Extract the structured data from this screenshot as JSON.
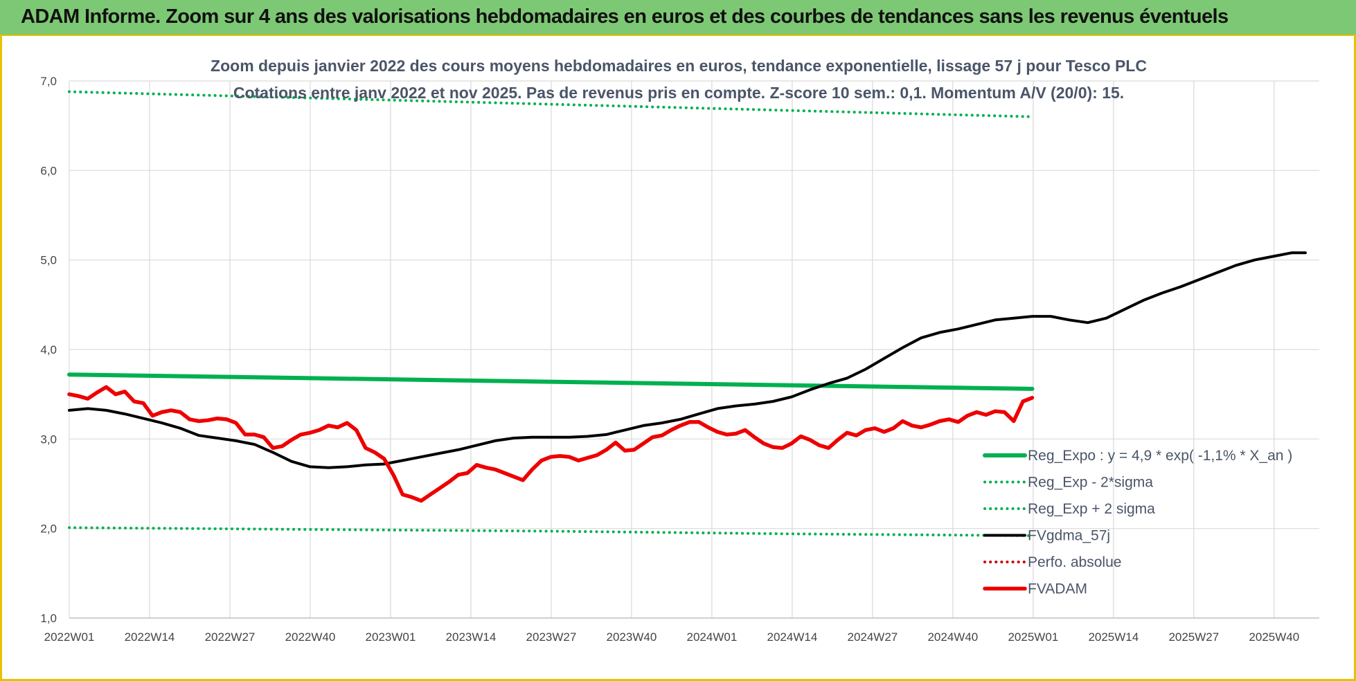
{
  "banner": {
    "title": "ADAM Informe. Zoom sur 4 ans des valorisations hebdomadaires en euros et des courbes de tendances sans les revenus éventuels"
  },
  "colors": {
    "banner_bg": "#7dc874",
    "border": "#e6c200",
    "trend": "#00b050",
    "fvgdma": "#000000",
    "fvadam": "#ee0000",
    "perfo": "#cc0000"
  },
  "chart_data": {
    "type": "line",
    "title_line1": "Zoom depuis janvier 2022 des cours moyens hebdomadaires en euros, tendance exponentielle, lissage 57 j pour Tesco PLC",
    "title_line2": "Cotations entre janv 2022 et nov 2025. Pas de revenus pris en compte. Z-score 10 sem.: 0,1. Momentum A/V (20/0): 15.",
    "ylim": [
      1.0,
      7.0
    ],
    "yticks": [
      "1,0",
      "2,0",
      "3,0",
      "4,0",
      "5,0",
      "6,0",
      "7,0"
    ],
    "xticks": [
      "2022W01",
      "2022W14",
      "2022W27",
      "2022W40",
      "2023W01",
      "2023W14",
      "2023W27",
      "2023W40",
      "2024W01",
      "2024W14",
      "2024W27",
      "2024W40",
      "2025W01",
      "2025W14",
      "2025W27",
      "2025W40"
    ],
    "grid": true,
    "legend_position": "bottom-right",
    "series": [
      {
        "name": "Reg_Expo : y = 4,9 * exp( -1,1% *  X_an )",
        "style": "solid-thick",
        "color": "#00b050",
        "points": [
          [
            0,
            3.72
          ],
          [
            52,
            3.68
          ],
          [
            104,
            3.64
          ],
          [
            156,
            3.6
          ],
          [
            208,
            3.56
          ]
        ]
      },
      {
        "name": "Reg_Exp - 2*sigma",
        "style": "dotted",
        "color": "#00b050",
        "points": [
          [
            0,
            2.01
          ],
          [
            52,
            1.99
          ],
          [
            104,
            1.97
          ],
          [
            156,
            1.94
          ],
          [
            208,
            1.92
          ]
        ]
      },
      {
        "name": "Reg_Exp + 2 sigma",
        "style": "dotted",
        "color": "#00b050",
        "points": [
          [
            0,
            6.88
          ],
          [
            52,
            6.81
          ],
          [
            104,
            6.74
          ],
          [
            156,
            6.67
          ],
          [
            208,
            6.6
          ]
        ]
      },
      {
        "name": "FVgdma_57j",
        "style": "solid",
        "color": "#000000",
        "points": [
          [
            0,
            3.32
          ],
          [
            4,
            3.34
          ],
          [
            8,
            3.32
          ],
          [
            12,
            3.28
          ],
          [
            16,
            3.23
          ],
          [
            20,
            3.18
          ],
          [
            24,
            3.12
          ],
          [
            28,
            3.04
          ],
          [
            32,
            3.01
          ],
          [
            36,
            2.98
          ],
          [
            40,
            2.94
          ],
          [
            44,
            2.85
          ],
          [
            48,
            2.75
          ],
          [
            52,
            2.69
          ],
          [
            56,
            2.68
          ],
          [
            60,
            2.69
          ],
          [
            64,
            2.71
          ],
          [
            68,
            2.72
          ],
          [
            72,
            2.76
          ],
          [
            76,
            2.8
          ],
          [
            80,
            2.84
          ],
          [
            84,
            2.88
          ],
          [
            88,
            2.93
          ],
          [
            92,
            2.98
          ],
          [
            96,
            3.01
          ],
          [
            100,
            3.02
          ],
          [
            104,
            3.02
          ],
          [
            108,
            3.02
          ],
          [
            112,
            3.03
          ],
          [
            116,
            3.05
          ],
          [
            120,
            3.1
          ],
          [
            124,
            3.15
          ],
          [
            128,
            3.18
          ],
          [
            132,
            3.22
          ],
          [
            136,
            3.28
          ],
          [
            140,
            3.34
          ],
          [
            144,
            3.37
          ],
          [
            148,
            3.39
          ],
          [
            152,
            3.42
          ],
          [
            156,
            3.47
          ],
          [
            160,
            3.55
          ],
          [
            164,
            3.62
          ],
          [
            168,
            3.68
          ],
          [
            172,
            3.78
          ],
          [
            176,
            3.9
          ],
          [
            180,
            4.02
          ],
          [
            184,
            4.13
          ],
          [
            188,
            4.19
          ],
          [
            192,
            4.23
          ],
          [
            196,
            4.28
          ],
          [
            200,
            4.33
          ],
          [
            204,
            4.35
          ],
          [
            208,
            4.37
          ],
          [
            212,
            4.37
          ],
          [
            216,
            4.33
          ],
          [
            220,
            4.3
          ],
          [
            224,
            4.35
          ],
          [
            228,
            4.45
          ],
          [
            232,
            4.55
          ],
          [
            236,
            4.63
          ],
          [
            240,
            4.7
          ],
          [
            244,
            4.78
          ],
          [
            248,
            4.86
          ],
          [
            252,
            4.94
          ],
          [
            256,
            5.0
          ],
          [
            260,
            5.04
          ],
          [
            264,
            5.08
          ],
          [
            267,
            5.08
          ]
        ]
      },
      {
        "name": "Perfo. absolue",
        "style": "dotted",
        "color": "#cc0000",
        "points": []
      },
      {
        "name": "FVADAM",
        "style": "solid-thick",
        "color": "#ee0000",
        "points": [
          [
            0,
            3.5
          ],
          [
            2,
            3.48
          ],
          [
            4,
            3.45
          ],
          [
            6,
            3.52
          ],
          [
            8,
            3.58
          ],
          [
            10,
            3.5
          ],
          [
            12,
            3.53
          ],
          [
            14,
            3.42
          ],
          [
            16,
            3.4
          ],
          [
            18,
            3.26
          ],
          [
            20,
            3.3
          ],
          [
            22,
            3.32
          ],
          [
            24,
            3.3
          ],
          [
            26,
            3.22
          ],
          [
            28,
            3.2
          ],
          [
            30,
            3.21
          ],
          [
            32,
            3.23
          ],
          [
            34,
            3.22
          ],
          [
            36,
            3.18
          ],
          [
            38,
            3.05
          ],
          [
            40,
            3.05
          ],
          [
            42,
            3.02
          ],
          [
            44,
            2.9
          ],
          [
            46,
            2.92
          ],
          [
            48,
            2.99
          ],
          [
            50,
            3.05
          ],
          [
            52,
            3.07
          ],
          [
            54,
            3.1
          ],
          [
            56,
            3.15
          ],
          [
            58,
            3.13
          ],
          [
            60,
            3.18
          ],
          [
            62,
            3.1
          ],
          [
            64,
            2.9
          ],
          [
            66,
            2.85
          ],
          [
            68,
            2.78
          ],
          [
            70,
            2.6
          ],
          [
            72,
            2.38
          ],
          [
            74,
            2.35
          ],
          [
            76,
            2.31
          ],
          [
            78,
            2.38
          ],
          [
            80,
            2.45
          ],
          [
            82,
            2.52
          ],
          [
            84,
            2.6
          ],
          [
            86,
            2.62
          ],
          [
            88,
            2.71
          ],
          [
            90,
            2.68
          ],
          [
            92,
            2.66
          ],
          [
            94,
            2.62
          ],
          [
            96,
            2.58
          ],
          [
            98,
            2.54
          ],
          [
            100,
            2.66
          ],
          [
            102,
            2.76
          ],
          [
            104,
            2.8
          ],
          [
            106,
            2.81
          ],
          [
            108,
            2.8
          ],
          [
            110,
            2.76
          ],
          [
            112,
            2.79
          ],
          [
            114,
            2.82
          ],
          [
            116,
            2.88
          ],
          [
            118,
            2.96
          ],
          [
            120,
            2.87
          ],
          [
            122,
            2.88
          ],
          [
            124,
            2.95
          ],
          [
            126,
            3.02
          ],
          [
            128,
            3.04
          ],
          [
            130,
            3.1
          ],
          [
            132,
            3.15
          ],
          [
            134,
            3.19
          ],
          [
            136,
            3.19
          ],
          [
            138,
            3.13
          ],
          [
            140,
            3.08
          ],
          [
            142,
            3.05
          ],
          [
            144,
            3.06
          ],
          [
            146,
            3.1
          ],
          [
            148,
            3.02
          ],
          [
            150,
            2.95
          ],
          [
            152,
            2.91
          ],
          [
            154,
            2.9
          ],
          [
            156,
            2.95
          ],
          [
            158,
            3.03
          ],
          [
            160,
            2.99
          ],
          [
            162,
            2.93
          ],
          [
            164,
            2.9
          ],
          [
            166,
            2.99
          ],
          [
            168,
            3.07
          ],
          [
            170,
            3.04
          ],
          [
            172,
            3.1
          ],
          [
            174,
            3.12
          ],
          [
            176,
            3.08
          ],
          [
            178,
            3.12
          ],
          [
            180,
            3.2
          ],
          [
            182,
            3.15
          ],
          [
            184,
            3.13
          ],
          [
            186,
            3.16
          ],
          [
            188,
            3.2
          ],
          [
            190,
            3.22
          ],
          [
            192,
            3.19
          ],
          [
            194,
            3.26
          ],
          [
            196,
            3.3
          ],
          [
            198,
            3.27
          ],
          [
            200,
            3.31
          ],
          [
            202,
            3.3
          ],
          [
            204,
            3.2
          ],
          [
            206,
            3.42
          ],
          [
            208,
            3.46
          ]
        ]
      }
    ]
  }
}
